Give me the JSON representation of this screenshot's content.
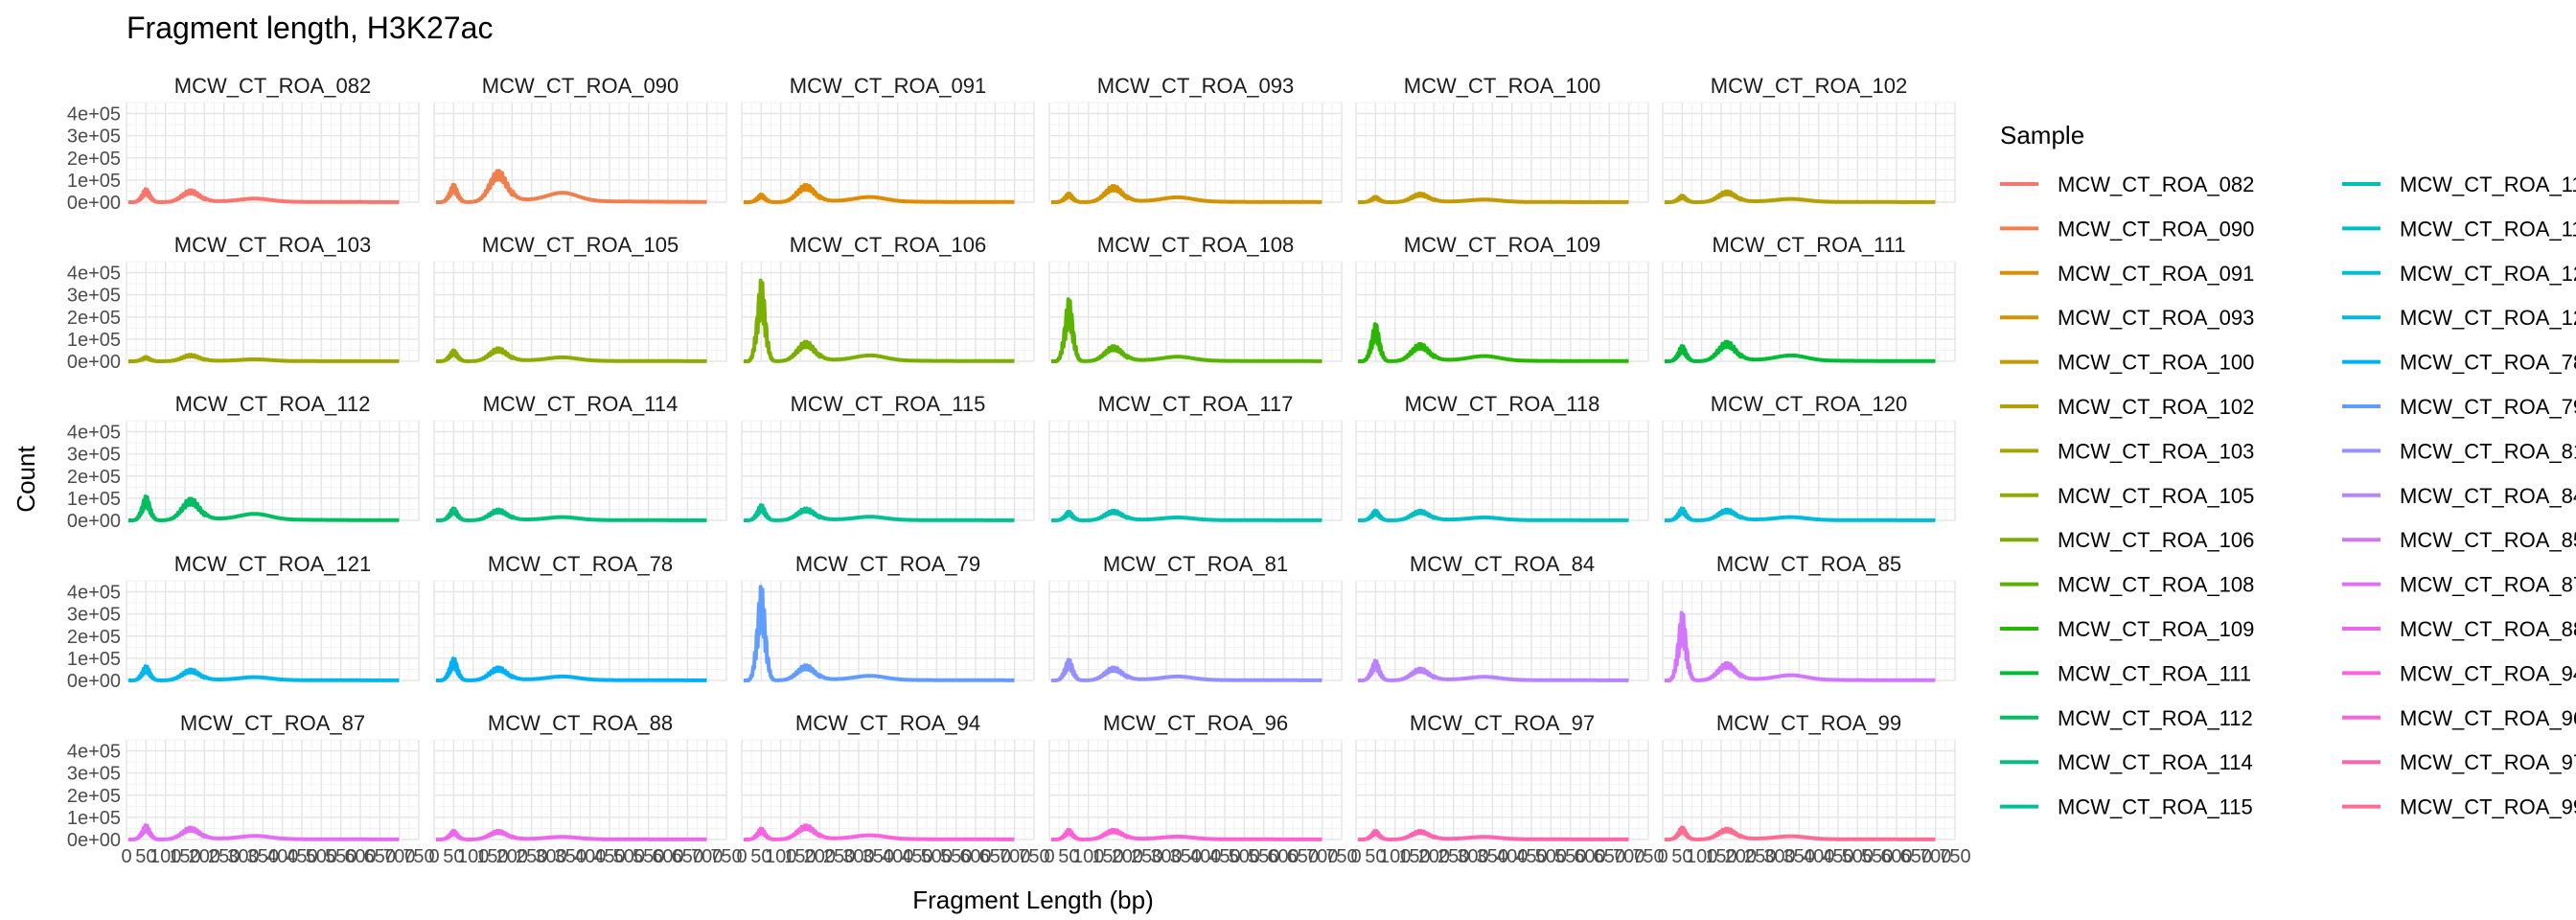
{
  "chart_data": {
    "type": "line",
    "title": "Fragment length, H3K27ac",
    "xlabel": "Fragment Length (bp)",
    "ylabel": "Count",
    "xlim": [
      0,
      750
    ],
    "ylim": [
      0,
      450000
    ],
    "x_ticks": [
      0,
      50,
      100,
      150,
      200,
      250,
      300,
      350,
      400,
      450,
      500,
      550,
      600,
      650,
      700,
      750
    ],
    "x_tick_labels": [
      "0",
      "50",
      "100",
      "150",
      "200",
      "250",
      "300",
      "350",
      "400",
      "450",
      "500",
      "550",
      "600",
      "650",
      "700",
      "750"
    ],
    "y_ticks": [
      0,
      100000,
      200000,
      300000,
      400000
    ],
    "y_tick_labels": [
      "0e+00",
      "1e+05",
      "2e+05",
      "3e+05",
      "4e+05"
    ],
    "grid": true,
    "facet": {
      "rows": 5,
      "cols": 6
    },
    "legend": {
      "title": "Sample",
      "placement": "right",
      "columns": 2
    },
    "series": [
      {
        "name": "MCW_CT_ROA_082",
        "color": "#F8766D",
        "peak1": 60000,
        "peak2": 55000
      },
      {
        "name": "MCW_CT_ROA_090",
        "color": "#F07F4E",
        "peak1": 80000,
        "peak2": 145000
      },
      {
        "name": "MCW_CT_ROA_091",
        "color": "#E08B00",
        "peak1": 35000,
        "peak2": 80000
      },
      {
        "name": "MCW_CT_ROA_093",
        "color": "#D39200",
        "peak1": 40000,
        "peak2": 75000
      },
      {
        "name": "MCW_CT_ROA_100",
        "color": "#C49A00",
        "peak1": 25000,
        "peak2": 40000
      },
      {
        "name": "MCW_CT_ROA_102",
        "color": "#B4A000",
        "peak1": 30000,
        "peak2": 50000
      },
      {
        "name": "MCW_CT_ROA_103",
        "color": "#A3A500",
        "peak1": 20000,
        "peak2": 30000
      },
      {
        "name": "MCW_CT_ROA_105",
        "color": "#8FAA00",
        "peak1": 50000,
        "peak2": 60000
      },
      {
        "name": "MCW_CT_ROA_106",
        "color": "#7AAE00",
        "peak1": 370000,
        "peak2": 90000
      },
      {
        "name": "MCW_CT_ROA_108",
        "color": "#5BB300",
        "peak1": 285000,
        "peak2": 70000
      },
      {
        "name": "MCW_CT_ROA_109",
        "color": "#2AB700",
        "peak1": 170000,
        "peak2": 80000
      },
      {
        "name": "MCW_CT_ROA_111",
        "color": "#00BA38",
        "peak1": 70000,
        "peak2": 90000
      },
      {
        "name": "MCW_CT_ROA_112",
        "color": "#00BD61",
        "peak1": 110000,
        "peak2": 100000
      },
      {
        "name": "MCW_CT_ROA_114",
        "color": "#00BF7D",
        "peak1": 55000,
        "peak2": 50000
      },
      {
        "name": "MCW_CT_ROA_115",
        "color": "#00C094",
        "peak1": 70000,
        "peak2": 55000
      },
      {
        "name": "MCW_CT_ROA_117",
        "color": "#00C0AF",
        "peak1": 40000,
        "peak2": 45000
      },
      {
        "name": "MCW_CT_ROA_118",
        "color": "#00BFC4",
        "peak1": 45000,
        "peak2": 45000
      },
      {
        "name": "MCW_CT_ROA_120",
        "color": "#00BBDA",
        "peak1": 55000,
        "peak2": 50000
      },
      {
        "name": "MCW_CT_ROA_121",
        "color": "#00B6EB",
        "peak1": 65000,
        "peak2": 50000
      },
      {
        "name": "MCW_CT_ROA_78",
        "color": "#00B0F6",
        "peak1": 100000,
        "peak2": 60000
      },
      {
        "name": "MCW_CT_ROA_79",
        "color": "#619CFF",
        "peak1": 430000,
        "peak2": 70000
      },
      {
        "name": "MCW_CT_ROA_81",
        "color": "#9590FF",
        "peak1": 95000,
        "peak2": 60000
      },
      {
        "name": "MCW_CT_ROA_84",
        "color": "#B983FF",
        "peak1": 90000,
        "peak2": 55000
      },
      {
        "name": "MCW_CT_ROA_85",
        "color": "#D376FF",
        "peak1": 310000,
        "peak2": 80000
      },
      {
        "name": "MCW_CT_ROA_87",
        "color": "#E36EF6",
        "peak1": 65000,
        "peak2": 55000
      },
      {
        "name": "MCW_CT_ROA_88",
        "color": "#EE67EB",
        "peak1": 40000,
        "peak2": 40000
      },
      {
        "name": "MCW_CT_ROA_94",
        "color": "#F763E0",
        "peak1": 50000,
        "peak2": 65000
      },
      {
        "name": "MCW_CT_ROA_96",
        "color": "#FC61D5",
        "peak1": 45000,
        "peak2": 45000
      },
      {
        "name": "MCW_CT_ROA_97",
        "color": "#FF64B0",
        "peak1": 40000,
        "peak2": 40000
      },
      {
        "name": "MCW_CT_ROA_99",
        "color": "#FF6C91",
        "peak1": 55000,
        "peak2": 50000
      }
    ]
  }
}
